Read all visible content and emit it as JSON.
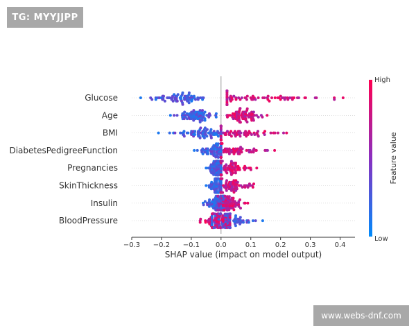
{
  "watermark_top": "TG: MYYJJPP",
  "watermark_bottom": "www.webs-dnf.com",
  "chart_data": {
    "type": "scatter",
    "subtype": "shap-beeswarm-summary",
    "xlabel": "SHAP value (impact on model output)",
    "xlim": [
      -0.3,
      0.45
    ],
    "xticks": [
      -0.3,
      -0.2,
      -0.1,
      0.0,
      0.1,
      0.2,
      0.3,
      0.4
    ],
    "xtick_labels": [
      "−0.3",
      "−0.2",
      "−0.1",
      "0.0",
      "0.1",
      "0.2",
      "0.3",
      "0.4"
    ],
    "colorbar": {
      "label": "Feature value",
      "high": "High",
      "low": "Low",
      "high_color": "#ff0052",
      "low_color": "#008bfb"
    },
    "features": [
      {
        "name": "Glucose",
        "low_range": [
          -0.27,
          -0.02
        ],
        "low_center": -0.14,
        "high_range": [
          0.02,
          0.41
        ],
        "high_center": 0.1,
        "extremes": [
          -0.27,
          0.41
        ]
      },
      {
        "name": "Age",
        "low_range": [
          -0.17,
          0.0
        ],
        "low_center": -0.08,
        "high_range": [
          0.0,
          0.15
        ],
        "high_center": 0.08,
        "extremes": [
          -0.17,
          0.155
        ]
      },
      {
        "name": "BMI",
        "low_range": [
          -0.21,
          0.0
        ],
        "low_center": -0.07,
        "high_range": [
          0.0,
          0.22
        ],
        "high_center": 0.05,
        "extremes": [
          -0.21,
          0.22
        ]
      },
      {
        "name": "DiabetesPedigreeFunction",
        "low_range": [
          -0.09,
          0.0
        ],
        "low_center": -0.02,
        "high_range": [
          0.0,
          0.18
        ],
        "high_center": 0.04,
        "extremes": [
          -0.09,
          0.18
        ]
      },
      {
        "name": "Pregnancies",
        "low_range": [
          -0.05,
          0.0
        ],
        "low_center": -0.015,
        "high_range": [
          0.0,
          0.12
        ],
        "high_center": 0.03,
        "extremes": [
          -0.05,
          0.12
        ]
      },
      {
        "name": "SkinThickness",
        "low_range": [
          -0.05,
          0.0
        ],
        "low_center": -0.015,
        "high_range": [
          0.0,
          0.11
        ],
        "high_center": 0.03,
        "extremes": [
          -0.05,
          0.11
        ]
      },
      {
        "name": "Insulin",
        "low_range": [
          -0.06,
          0.01
        ],
        "low_center": -0.01,
        "high_range": [
          -0.01,
          0.09
        ],
        "high_center": 0.02,
        "extremes": [
          -0.06,
          0.09
        ]
      },
      {
        "name": "BloodPressure",
        "low_range": [
          -0.03,
          0.14
        ],
        "low_center": 0.03,
        "high_range": [
          -0.07,
          0.03
        ],
        "high_center": -0.005,
        "extremes": [
          -0.07,
          0.14
        ]
      }
    ]
  }
}
